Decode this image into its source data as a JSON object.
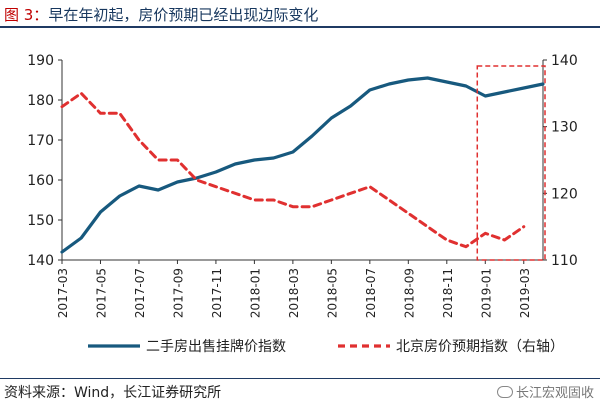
{
  "figure": {
    "label": "图 3：",
    "title": "早在年初起，房价预期已经出现边际变化"
  },
  "source": "资料来源：Wind，长江证券研究所",
  "watermark": "长江宏观固收",
  "chart_data": {
    "type": "line",
    "title": "早在年初起，房价预期已经出现边际变化",
    "x_tick_labels": [
      "2017-03",
      "2017-05",
      "2017-07",
      "2017-09",
      "2017-11",
      "2018-01",
      "2018-03",
      "2018-05",
      "2018-07",
      "2018-09",
      "2018-11",
      "2019-01",
      "2019-03"
    ],
    "x_range": [
      "2017-03",
      "2019-04"
    ],
    "y_left": {
      "ylim": [
        140,
        190
      ],
      "ticks": [
        140,
        150,
        160,
        170,
        180,
        190
      ]
    },
    "y_right": {
      "ylim": [
        110,
        140
      ],
      "ticks": [
        110,
        120,
        130,
        140
      ]
    },
    "legend_position": "bottom",
    "grid": false,
    "annotation": "red dashed box highlighting 2019-01 to 2019-04",
    "highlight_range": [
      "2019-01",
      "2019-04"
    ],
    "series": [
      {
        "name": "二手房出售挂牌价指数",
        "axis": "left",
        "color": "#17597e",
        "style": "solid",
        "x": [
          "2017-03",
          "2017-04",
          "2017-05",
          "2017-06",
          "2017-07",
          "2017-08",
          "2017-09",
          "2017-10",
          "2017-11",
          "2017-12",
          "2018-01",
          "2018-02",
          "2018-03",
          "2018-04",
          "2018-05",
          "2018-06",
          "2018-07",
          "2018-08",
          "2018-09",
          "2018-10",
          "2018-11",
          "2018-12",
          "2019-01",
          "2019-02",
          "2019-03",
          "2019-04"
        ],
        "values": [
          142,
          145.5,
          152,
          156,
          158.5,
          157.5,
          159.5,
          160.5,
          162,
          164,
          165,
          165.5,
          167,
          171,
          175.5,
          178.5,
          182.5,
          184,
          185,
          185.5,
          184.5,
          183.5,
          181,
          182,
          183,
          184
        ]
      },
      {
        "name": "北京房价预期指数（右轴）",
        "axis": "right",
        "color": "#e03030",
        "style": "dashed",
        "x": [
          "2017-03",
          "2017-04",
          "2017-05",
          "2017-06",
          "2017-07",
          "2017-08",
          "2017-09",
          "2017-10",
          "2017-11",
          "2017-12",
          "2018-01",
          "2018-02",
          "2018-03",
          "2018-04",
          "2018-05",
          "2018-06",
          "2018-07",
          "2018-08",
          "2018-09",
          "2018-10",
          "2018-11",
          "2018-12",
          "2019-01",
          "2019-02",
          "2019-03"
        ],
        "values": [
          133,
          135,
          132,
          132,
          128,
          125,
          125,
          122,
          121,
          120,
          119,
          119,
          118,
          118,
          119,
          120,
          121,
          119,
          117,
          115,
          113,
          112,
          114,
          113,
          115
        ]
      }
    ]
  }
}
